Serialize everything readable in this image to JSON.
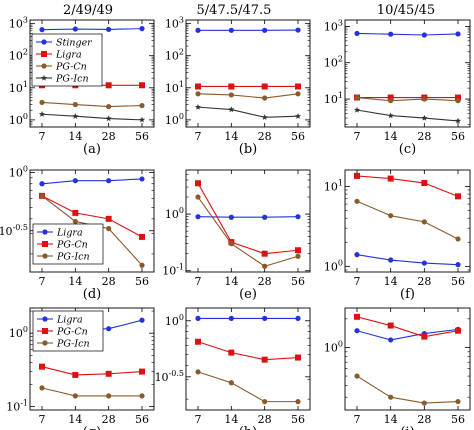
{
  "column_titles": [
    "2/49/49",
    "5/47.5/47.5",
    "10/45/45"
  ],
  "colors": {
    "stinger": "#2233dd",
    "ligra": "#dd1111",
    "pgcn": "#8b5a2b",
    "pgicn": "#333333"
  },
  "legend_row1": [
    {
      "name": "Stinger",
      "color": "#2233dd",
      "marker": "circle"
    },
    {
      "name": "Ligra",
      "color": "#dd1111",
      "marker": "square"
    },
    {
      "name": "PG-Cn",
      "color": "#8b5a2b",
      "marker": "circle"
    },
    {
      "name": "PG-Icn",
      "color": "#333333",
      "marker": "star"
    }
  ],
  "legend_rows23": [
    {
      "name": "Ligra",
      "color": "#2233dd",
      "marker": "circle"
    },
    {
      "name": "PG-Cn",
      "color": "#dd1111",
      "marker": "square"
    },
    {
      "name": "PG-Icn",
      "color": "#8b5a2b",
      "marker": "circle"
    }
  ],
  "chart_data": [
    {
      "type": "line",
      "panel": "(a)",
      "x": [
        7,
        14,
        28,
        56
      ],
      "yscale": "log",
      "ylim": [
        0.6,
        1300
      ],
      "yticks": [
        {
          "v": 1,
          "label": "10^0"
        },
        {
          "v": 10,
          "label": "10^1"
        },
        {
          "v": 100,
          "label": "10^2"
        },
        {
          "v": 1000,
          "label": "10^3"
        }
      ],
      "series": [
        {
          "name": "Stinger",
          "color": "#2233dd",
          "marker": "circle",
          "values": [
            650,
            680,
            660,
            700
          ]
        },
        {
          "name": "Ligra",
          "color": "#dd1111",
          "marker": "square",
          "values": [
            12,
            12,
            12,
            12
          ]
        },
        {
          "name": "PG-Cn",
          "color": "#8b5a2b",
          "marker": "circle",
          "values": [
            3.5,
            3.0,
            2.6,
            2.8
          ]
        },
        {
          "name": "PG-Icn",
          "color": "#333333",
          "marker": "star",
          "values": [
            1.5,
            1.3,
            1.1,
            1.0
          ]
        }
      ],
      "legend": "top-left"
    },
    {
      "type": "line",
      "panel": "(b)",
      "x": [
        7,
        14,
        28,
        56
      ],
      "yscale": "log",
      "ylim": [
        0.6,
        1300
      ],
      "yticks": [
        {
          "v": 1,
          "label": "10^0"
        },
        {
          "v": 10,
          "label": "10^1"
        },
        {
          "v": 100,
          "label": "10^2"
        },
        {
          "v": 1000,
          "label": "10^3"
        }
      ],
      "series": [
        {
          "color": "#2233dd",
          "marker": "circle",
          "values": [
            620,
            620,
            620,
            630
          ]
        },
        {
          "color": "#dd1111",
          "marker": "square",
          "values": [
            11,
            11,
            11,
            11
          ]
        },
        {
          "color": "#8b5a2b",
          "marker": "circle",
          "values": [
            6.5,
            6.0,
            4.8,
            6.5
          ]
        },
        {
          "color": "#333333",
          "marker": "star",
          "values": [
            2.5,
            2.1,
            1.2,
            1.3
          ]
        }
      ]
    },
    {
      "type": "line",
      "panel": "(c)",
      "x": [
        7,
        14,
        28,
        56
      ],
      "yscale": "log",
      "ylim": [
        1.7,
        1500
      ],
      "yticks": [
        {
          "v": 10,
          "label": "10^1"
        },
        {
          "v": 100,
          "label": "10^2"
        },
        {
          "v": 1000,
          "label": "10^3"
        }
      ],
      "series": [
        {
          "color": "#2233dd",
          "marker": "circle",
          "values": [
            640,
            610,
            580,
            620
          ]
        },
        {
          "color": "#dd1111",
          "marker": "square",
          "values": [
            11,
            11,
            11,
            11
          ]
        },
        {
          "color": "#8b5a2b",
          "marker": "circle",
          "values": [
            11,
            9,
            10,
            9
          ]
        },
        {
          "color": "#333333",
          "marker": "star",
          "values": [
            5,
            3.5,
            3.0,
            2.5
          ]
        }
      ]
    },
    {
      "type": "line",
      "panel": "(d)",
      "x": [
        7,
        14,
        28,
        56
      ],
      "yscale": "log",
      "ylim": [
        0.14,
        1.05
      ],
      "yticks": [
        {
          "v": 1,
          "label": "10^0"
        },
        {
          "v": 0.3162,
          "label": "10^-0.5"
        }
      ],
      "series": [
        {
          "name": "Ligra",
          "color": "#2233dd",
          "marker": "circle",
          "values": [
            0.8,
            0.85,
            0.85,
            0.88
          ]
        },
        {
          "name": "PG-Cn",
          "color": "#dd1111",
          "marker": "square",
          "values": [
            0.63,
            0.45,
            0.4,
            0.28
          ]
        },
        {
          "name": "PG-Icn",
          "color": "#8b5a2b",
          "marker": "circle",
          "values": [
            0.63,
            0.38,
            0.33,
            0.16
          ]
        }
      ],
      "legend": "bottom-left"
    },
    {
      "type": "line",
      "panel": "(e)",
      "x": [
        7,
        14,
        28,
        56
      ],
      "yscale": "log",
      "ylim": [
        0.095,
        6
      ],
      "yticks": [
        {
          "v": 1,
          "label": "10^0"
        },
        {
          "v": 0.1,
          "label": "10^-1"
        }
      ],
      "series": [
        {
          "color": "#2233dd",
          "marker": "circle",
          "values": [
            0.9,
            0.88,
            0.88,
            0.9
          ]
        },
        {
          "color": "#dd1111",
          "marker": "square",
          "values": [
            3.5,
            0.32,
            0.2,
            0.23
          ]
        },
        {
          "color": "#8b5a2b",
          "marker": "circle",
          "values": [
            2.0,
            0.3,
            0.12,
            0.18
          ]
        }
      ]
    },
    {
      "type": "line",
      "panel": "(f)",
      "x": [
        7,
        14,
        28,
        56
      ],
      "yscale": "log",
      "ylim": [
        0.85,
        16
      ],
      "yticks": [
        {
          "v": 1,
          "label": "10^0"
        },
        {
          "v": 10,
          "label": "10^1"
        }
      ],
      "series": [
        {
          "color": "#2233dd",
          "marker": "circle",
          "values": [
            1.4,
            1.2,
            1.1,
            1.05
          ]
        },
        {
          "color": "#dd1111",
          "marker": "square",
          "values": [
            13.5,
            12.5,
            11,
            7.5
          ]
        },
        {
          "color": "#8b5a2b",
          "marker": "circle",
          "values": [
            6.5,
            4.3,
            3.6,
            2.2
          ]
        }
      ]
    },
    {
      "type": "line",
      "panel": "(g)",
      "x": [
        7,
        14,
        28,
        56
      ],
      "yscale": "log",
      "ylim": [
        0.09,
        2.2
      ],
      "yticks": [
        {
          "v": 1,
          "label": "10^0"
        },
        {
          "v": 0.1,
          "label": "10^-1"
        }
      ],
      "series": [
        {
          "name": "Ligra",
          "color": "#2233dd",
          "marker": "circle",
          "values": [
            1.6,
            1.1,
            1.15,
            1.5
          ]
        },
        {
          "name": "PG-Cn",
          "color": "#dd1111",
          "marker": "square",
          "values": [
            0.35,
            0.27,
            0.28,
            0.3
          ]
        },
        {
          "name": "PG-Icn",
          "color": "#8b5a2b",
          "marker": "circle",
          "values": [
            0.18,
            0.14,
            0.14,
            0.14
          ]
        }
      ],
      "legend": "top-left"
    },
    {
      "type": "line",
      "panel": "(h)",
      "x": [
        7,
        14,
        28,
        56
      ],
      "yscale": "log",
      "ylim": [
        0.16,
        1.3
      ],
      "yticks": [
        {
          "v": 1,
          "label": "10^0"
        },
        {
          "v": 0.3162,
          "label": "10^-0.5"
        }
      ],
      "series": [
        {
          "color": "#2233dd",
          "marker": "circle",
          "values": [
            1.05,
            1.05,
            1.05,
            1.05
          ]
        },
        {
          "color": "#dd1111",
          "marker": "square",
          "values": [
            0.65,
            0.52,
            0.45,
            0.47
          ]
        },
        {
          "color": "#8b5a2b",
          "marker": "circle",
          "values": [
            0.35,
            0.28,
            0.19,
            0.19
          ]
        }
      ]
    },
    {
      "type": "line",
      "panel": "(i)",
      "x": [
        7,
        14,
        28,
        56
      ],
      "yscale": "log",
      "ylim": [
        0.22,
        2.6
      ],
      "yticks": [
        {
          "v": 1,
          "label": "10^0"
        }
      ],
      "series": [
        {
          "color": "#2233dd",
          "marker": "circle",
          "values": [
            1.5,
            1.2,
            1.4,
            1.55
          ]
        },
        {
          "color": "#dd1111",
          "marker": "square",
          "values": [
            2.1,
            1.7,
            1.3,
            1.5
          ]
        },
        {
          "color": "#8b5a2b",
          "marker": "circle",
          "values": [
            0.5,
            0.3,
            0.26,
            0.27
          ]
        }
      ]
    }
  ]
}
